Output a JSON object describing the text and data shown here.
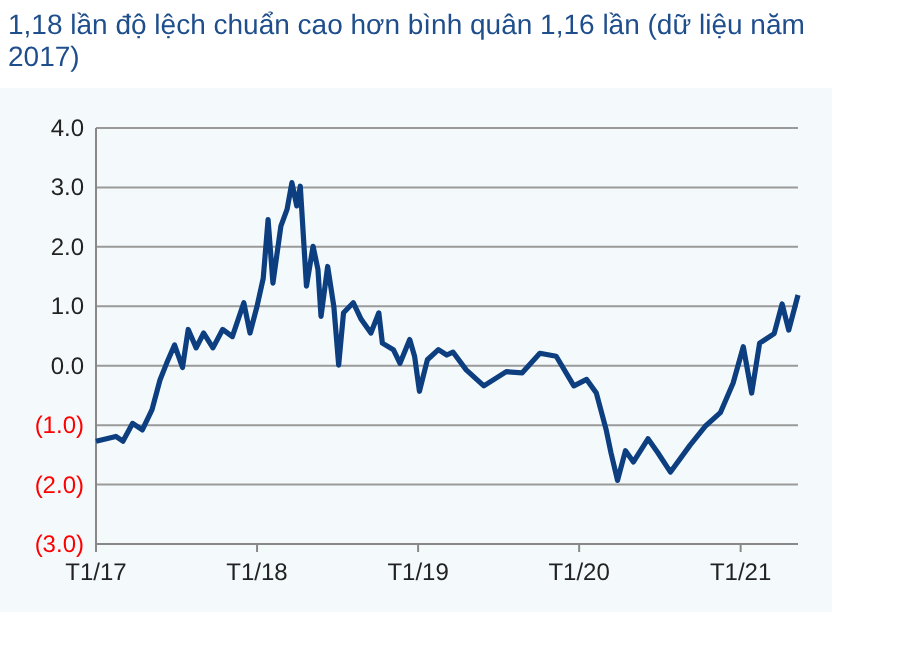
{
  "chart_data": {
    "type": "line",
    "title": "1,18 lần độ lệch chuẩn cao hơn bình quân 1,16 lần (dữ liệu năm 2017)",
    "x": [
      "2017-01-01",
      "2017-02-15",
      "2017-03-03",
      "2017-03-25",
      "2017-04-16",
      "2017-05-08",
      "2017-05-26",
      "2017-06-10",
      "2017-06-28",
      "2017-07-16",
      "2017-07-29",
      "2017-08-16",
      "2017-09-02",
      "2017-09-23",
      "2017-10-15",
      "2017-11-06",
      "2017-12-02",
      "2017-12-16",
      "2018-01-01",
      "2018-01-15",
      "2018-01-26",
      "2018-02-06",
      "2018-02-24",
      "2018-03-10",
      "2018-03-21",
      "2018-04-01",
      "2018-04-09",
      "2018-04-23",
      "2018-05-08",
      "2018-05-19",
      "2018-05-26",
      "2018-06-10",
      "2018-06-24",
      "2018-07-05",
      "2018-07-16",
      "2018-08-07",
      "2018-08-25",
      "2018-09-16",
      "2018-10-04",
      "2018-10-12",
      "2018-11-06",
      "2018-11-21",
      "2018-12-13",
      "2018-12-24",
      "2019-01-04",
      "2019-01-22",
      "2019-02-16",
      "2019-03-07",
      "2019-03-21",
      "2019-04-20",
      "2019-05-30",
      "2019-07-20",
      "2019-08-25",
      "2019-10-04",
      "2019-11-10",
      "2019-12-20",
      "2020-01-18",
      "2020-02-09",
      "2020-03-02",
      "2020-03-13",
      "2020-03-28",
      "2020-04-15",
      "2020-05-03",
      "2020-06-05",
      "2020-06-27",
      "2020-07-26",
      "2020-09-08",
      "2020-10-14",
      "2020-11-16",
      "2020-12-15",
      "2021-01-07",
      "2021-01-26",
      "2021-02-13",
      "2021-03-18",
      "2021-04-05",
      "2021-04-20",
      "2021-05-11"
    ],
    "series": [
      {
        "color": "#0d3f80",
        "values": [
          -1.27,
          -1.19,
          -1.27,
          -0.97,
          -1.08,
          -0.74,
          -0.24,
          0.04,
          0.35,
          -0.03,
          0.61,
          0.3,
          0.55,
          0.3,
          0.61,
          0.49,
          1.06,
          0.55,
          1.0,
          1.47,
          2.46,
          1.39,
          2.35,
          2.63,
          3.08,
          2.69,
          3.02,
          1.34,
          2.01,
          1.62,
          0.83,
          1.67,
          1.0,
          0.01,
          0.89,
          1.06,
          0.78,
          0.55,
          0.89,
          0.38,
          0.27,
          0.04,
          0.44,
          0.16,
          -0.43,
          0.1,
          0.27,
          0.18,
          0.23,
          -0.07,
          -0.34,
          -0.1,
          -0.12,
          0.21,
          0.16,
          -0.34,
          -0.23,
          -0.46,
          -1.07,
          -1.46,
          -1.93,
          -1.43,
          -1.62,
          -1.23,
          -1.46,
          -1.79,
          -1.34,
          -1.01,
          -0.79,
          -0.29,
          0.32,
          -0.46,
          0.38,
          0.54,
          1.04,
          0.6,
          1.19
        ]
      }
    ],
    "xlim": [
      "2017-01-01",
      "2021-05-11"
    ],
    "xticks": [
      {
        "value": "2017-01-01",
        "label": "T1/17"
      },
      {
        "value": "2018-01-01",
        "label": "T1/18"
      },
      {
        "value": "2019-01-01",
        "label": "T1/19"
      },
      {
        "value": "2020-01-01",
        "label": "T1/20"
      },
      {
        "value": "2021-01-01",
        "label": "T1/21"
      }
    ],
    "ylim": [
      -3,
      4
    ],
    "yticks": [
      {
        "value": -3,
        "label": "(3.0)"
      },
      {
        "value": -2,
        "label": "(2.0)"
      },
      {
        "value": -1,
        "label": "(1.0)"
      },
      {
        "value": 0,
        "label": "0.0"
      },
      {
        "value": 1,
        "label": "1.0"
      },
      {
        "value": 2,
        "label": "2.0"
      },
      {
        "value": 3,
        "label": "3.0"
      },
      {
        "value": 4,
        "label": "4.0"
      }
    ],
    "grid": "y",
    "marker": "none",
    "line_style": "solid"
  }
}
